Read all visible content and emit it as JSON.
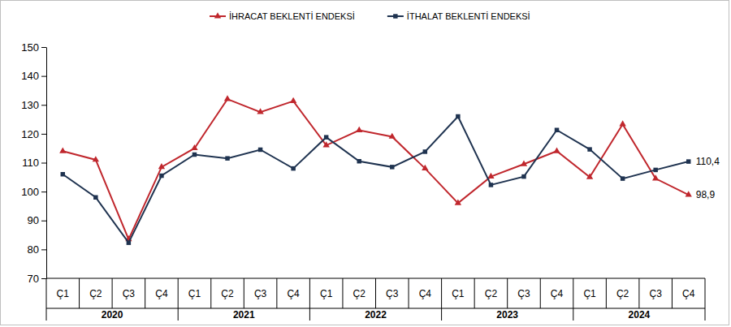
{
  "chart_data": {
    "type": "line",
    "categories": [
      "Ç1",
      "Ç2",
      "Ç3",
      "Ç4",
      "Ç1",
      "Ç2",
      "Ç3",
      "Ç4",
      "Ç1",
      "Ç2",
      "Ç3",
      "Ç4",
      "Ç1",
      "Ç2",
      "Ç3",
      "Ç4",
      "Ç1",
      "Ç2",
      "Ç3",
      "Ç4"
    ],
    "groups": [
      "2020",
      "2021",
      "2022",
      "2023",
      "2024"
    ],
    "series": [
      {
        "name": "İHRACAT BEKLENTİ ENDEKSİ",
        "color": "#c0272d",
        "marker": "triangle",
        "line_style": "solid",
        "values": [
          114,
          111,
          83.5,
          108.5,
          115,
          132,
          127.5,
          131.3,
          116,
          121.2,
          119,
          108,
          96,
          105.2,
          109.5,
          114,
          105,
          123.3,
          104.5,
          98.9
        ],
        "value_labels": [
          null,
          null,
          null,
          null,
          null,
          null,
          null,
          null,
          null,
          null,
          null,
          null,
          null,
          null,
          null,
          null,
          null,
          null,
          null,
          "98,9"
        ]
      },
      {
        "name": "İTHALAT BEKLENTİ ENDEKSİ",
        "color": "#1f3350",
        "marker": "square",
        "line_style": "solid",
        "values": [
          106,
          98,
          82.3,
          105.5,
          112.8,
          111.5,
          114.5,
          108,
          118.8,
          110.5,
          108.5,
          113.8,
          126,
          102.3,
          105.2,
          121.3,
          114.6,
          104.5,
          107.5,
          110.4
        ],
        "value_labels": [
          null,
          null,
          null,
          null,
          null,
          null,
          null,
          null,
          null,
          null,
          null,
          null,
          null,
          null,
          null,
          null,
          null,
          null,
          null,
          "110,4"
        ]
      }
    ],
    "ylim": [
      70,
      150
    ],
    "yticks": [
      70,
      80,
      90,
      100,
      110,
      120,
      130,
      140,
      150
    ],
    "grid": false,
    "legend": "top"
  }
}
